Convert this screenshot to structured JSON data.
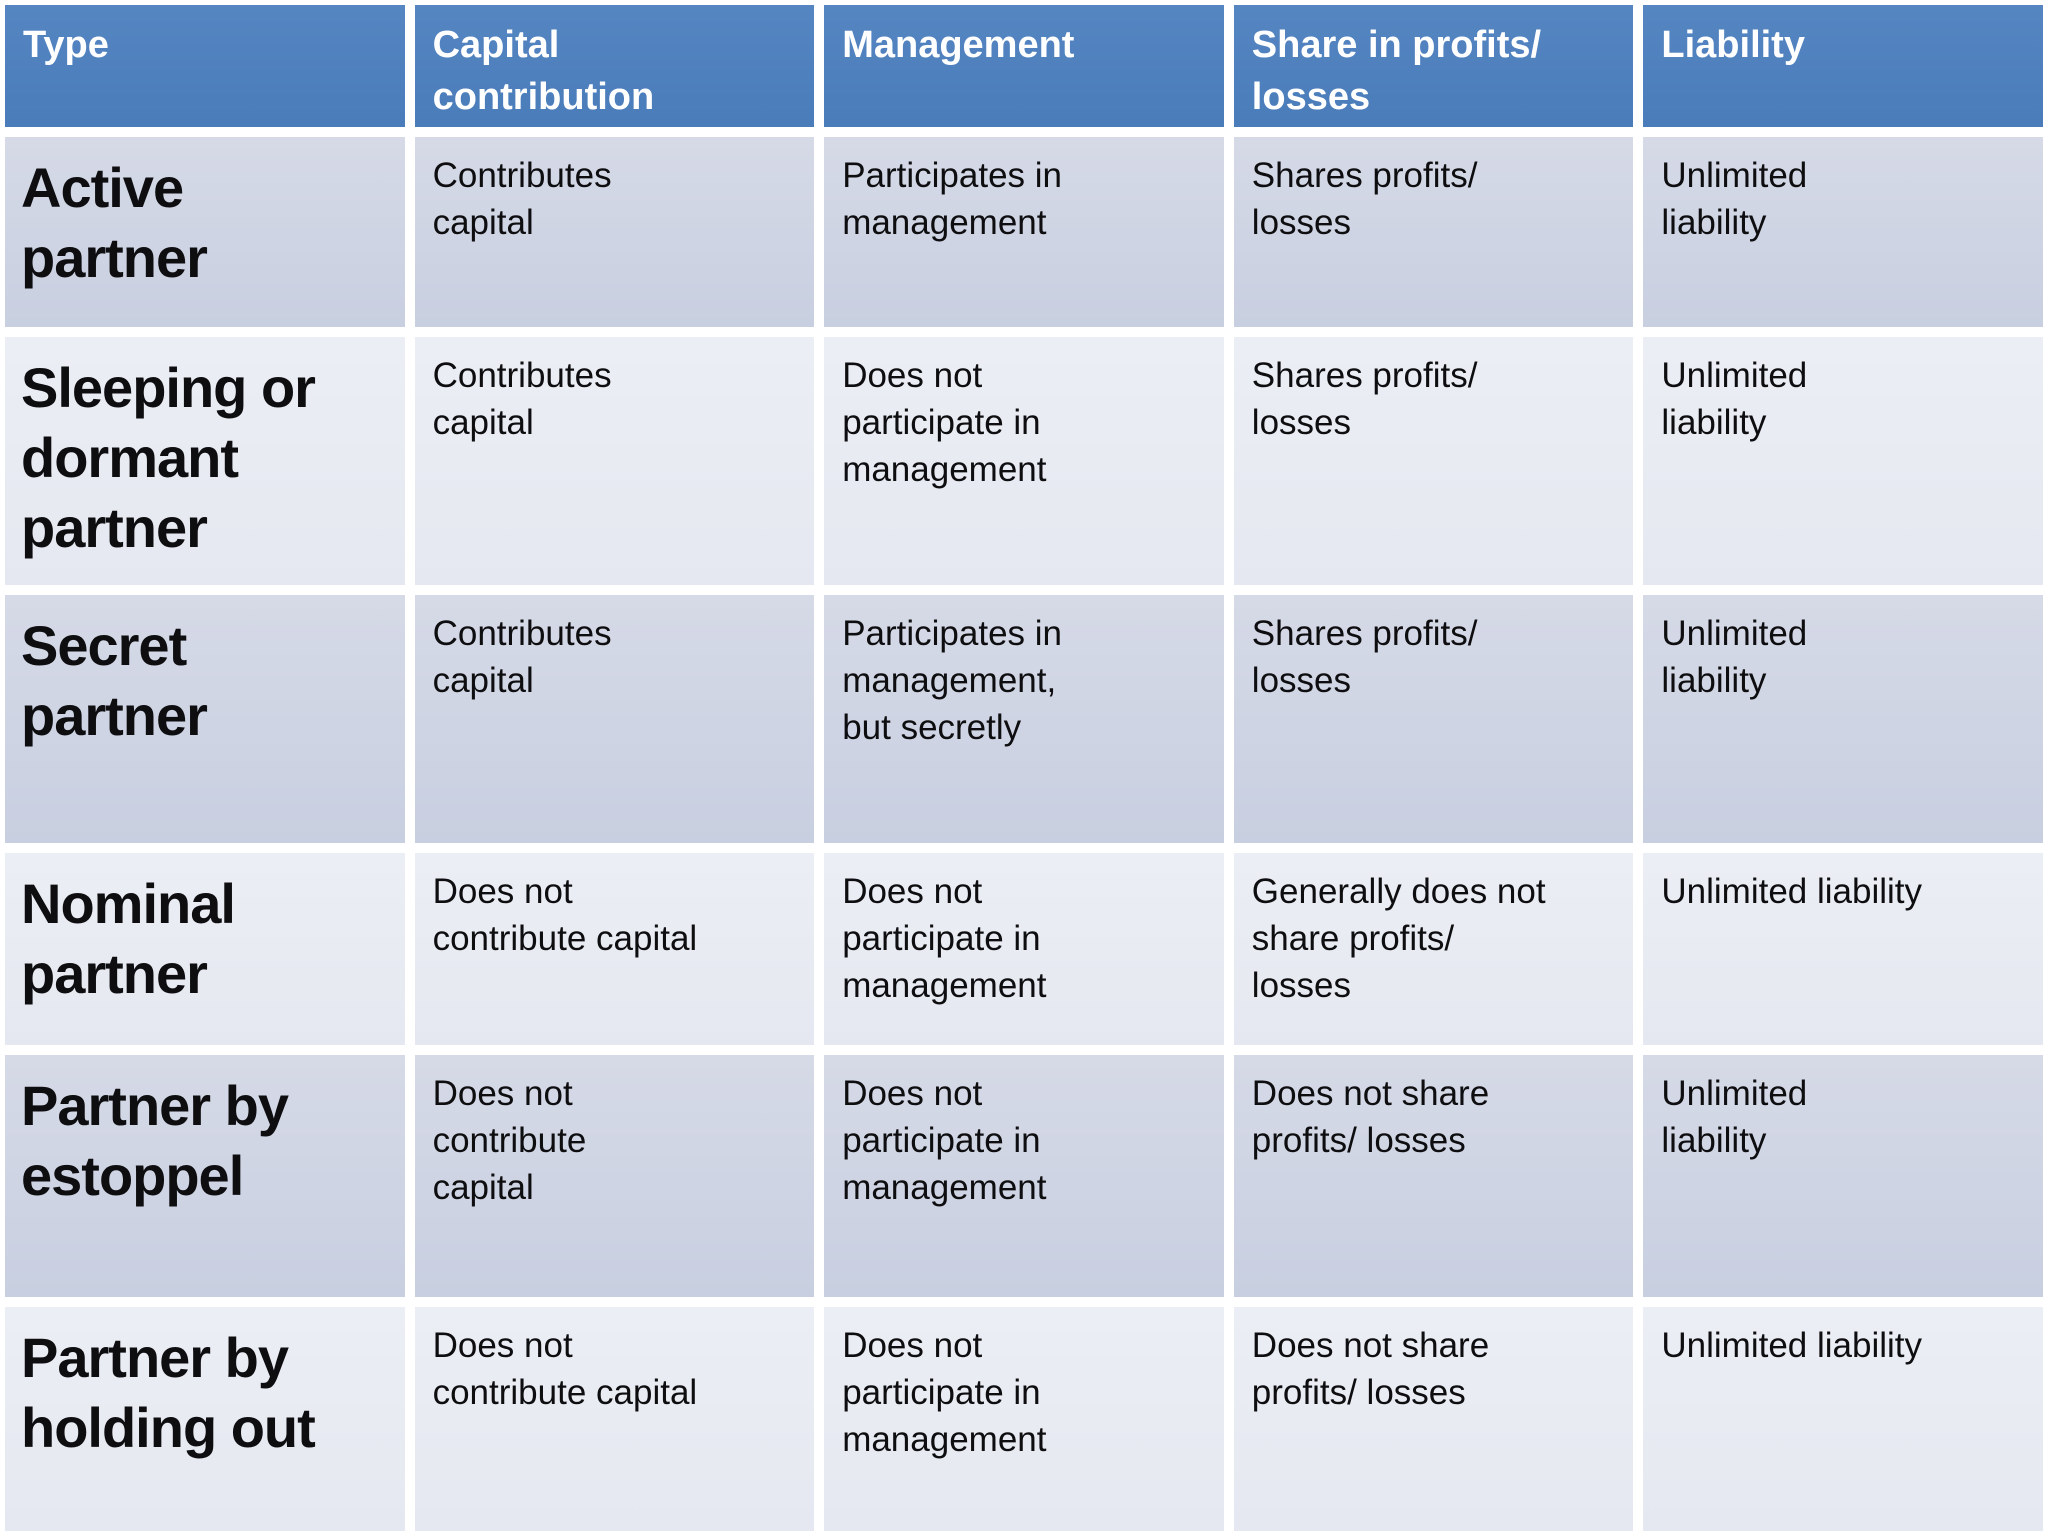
{
  "colors": {
    "header_bg": "#4f81bd",
    "header_text": "#ffffff",
    "band_dark": "#cfd4e3",
    "band_light": "#e9ebf3",
    "body_text": "#0e0e10",
    "gridline": "#ffffff"
  },
  "table": {
    "headers": {
      "type": "Type",
      "capital": "Capital\ncontribution",
      "management": "Management",
      "share": "Share in profits/\nlosses",
      "liability": "Liability"
    },
    "rows": [
      {
        "type": "Active\npartner",
        "capital": "Contributes\ncapital",
        "management": "Participates in\nmanagement",
        "share": "Shares profits/\nlosses",
        "liability": "Unlimited\nliability"
      },
      {
        "type": "Sleeping or\ndormant\npartner",
        "capital": "Contributes\ncapital",
        "management": "Does not\nparticipate in\nmanagement",
        "share": "Shares profits/\nlosses",
        "liability": "Unlimited\nliability"
      },
      {
        "type": "Secret\npartner",
        "capital": "Contributes\ncapital",
        "management": "Participates in\nmanagement,\nbut secretly",
        "share": "Shares profits/\nlosses",
        "liability": "Unlimited\nliability"
      },
      {
        "type": "Nominal\npartner",
        "capital": "Does not\ncontribute capital",
        "management": "Does not\nparticipate in\nmanagement",
        "share": "Generally does not\nshare profits/\nlosses",
        "liability": "Unlimited liability"
      },
      {
        "type": "Partner by\nestoppel",
        "capital": "Does not\ncontribute\ncapital",
        "management": "Does not\nparticipate in\nmanagement",
        "share": "Does not share\nprofits/ losses",
        "liability": "Unlimited\nliability"
      },
      {
        "type": "Partner by\nholding out",
        "capital": "Does not\ncontribute capital",
        "management": "Does not\nparticipate in\nmanagement",
        "share": "Does not share\nprofits/ losses",
        "liability": "Unlimited liability"
      }
    ]
  }
}
